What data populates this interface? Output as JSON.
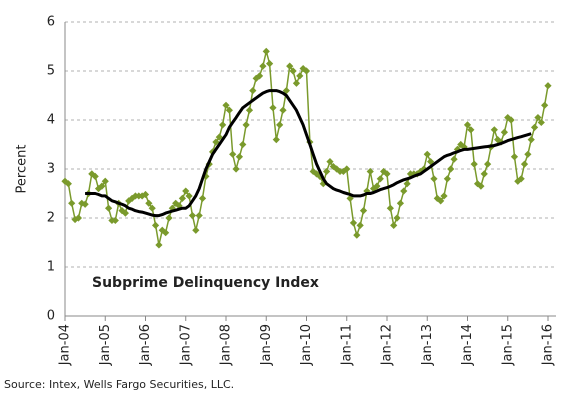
{
  "chart_data": {
    "type": "line",
    "title": "Subprime Delinquency Index",
    "y_label": "Percent",
    "source": "Source: Intex, Wells Fargo Securities, LLC.",
    "categories": [
      "Jan-04",
      null,
      null,
      null,
      null,
      null,
      null,
      null,
      null,
      null,
      null,
      null,
      "Jan-05",
      null,
      null,
      null,
      null,
      null,
      null,
      null,
      null,
      null,
      null,
      null,
      "Jan-06",
      null,
      null,
      null,
      null,
      null,
      null,
      null,
      null,
      null,
      null,
      null,
      "Jan-07",
      null,
      null,
      null,
      null,
      null,
      null,
      null,
      null,
      null,
      null,
      null,
      "Jan-08",
      null,
      null,
      null,
      null,
      null,
      null,
      null,
      null,
      null,
      null,
      null,
      "Jan-09",
      null,
      null,
      null,
      null,
      null,
      null,
      null,
      null,
      null,
      null,
      null,
      "Jan-10",
      null,
      null,
      null,
      null,
      null,
      null,
      null,
      null,
      null,
      null,
      null,
      "Jan-11",
      null,
      null,
      null,
      null,
      null,
      null,
      null,
      null,
      null,
      null,
      null,
      "Jan-12",
      null,
      null,
      null,
      null,
      null,
      null,
      null,
      null,
      null,
      null,
      null,
      "Jan-13",
      null,
      null,
      null,
      null,
      null,
      null,
      null,
      null,
      null,
      null,
      null,
      "Jan-14",
      null,
      null,
      null,
      null,
      null,
      null,
      null,
      null,
      null,
      null,
      null,
      "Jan-15",
      null,
      null,
      null,
      null,
      null,
      null,
      null,
      null,
      null,
      null,
      null,
      "Jan-16"
    ],
    "series": [
      {
        "color": "#7a9a2c",
        "marker": "diamond",
        "values": [
          2.75,
          2.7,
          2.3,
          1.97,
          2.0,
          2.3,
          2.28,
          2.5,
          2.9,
          2.85,
          2.6,
          2.65,
          2.75,
          2.2,
          1.95,
          1.95,
          2.3,
          2.15,
          2.1,
          2.35,
          2.4,
          2.45,
          2.45,
          2.45,
          2.48,
          2.3,
          2.2,
          1.85,
          1.45,
          1.75,
          1.7,
          2.0,
          2.2,
          2.3,
          2.25,
          2.4,
          2.55,
          2.45,
          2.05,
          1.75,
          2.05,
          2.4,
          2.85,
          3.1,
          3.35,
          3.55,
          3.65,
          3.9,
          4.3,
          4.2,
          3.3,
          3.0,
          3.25,
          3.5,
          3.9,
          4.2,
          4.6,
          4.85,
          4.9,
          5.1,
          5.4,
          5.15,
          4.25,
          3.6,
          3.9,
          4.2,
          4.6,
          5.1,
          5.0,
          4.75,
          4.9,
          5.05,
          5.0,
          3.55,
          2.95,
          2.9,
          2.85,
          2.7,
          2.95,
          3.15,
          3.05,
          3.0,
          2.95,
          2.95,
          3.0,
          2.4,
          1.9,
          1.65,
          1.85,
          2.15,
          2.55,
          2.95,
          2.6,
          2.65,
          2.8,
          2.95,
          2.9,
          2.2,
          1.85,
          2.0,
          2.3,
          2.55,
          2.7,
          2.9,
          2.9,
          2.9,
          2.95,
          3.0,
          3.3,
          3.15,
          2.8,
          2.4,
          2.35,
          2.45,
          2.8,
          3.0,
          3.2,
          3.4,
          3.5,
          3.45,
          3.9,
          3.8,
          3.1,
          2.7,
          2.65,
          2.9,
          3.1,
          3.45,
          3.8,
          3.6,
          3.55,
          3.75,
          4.05,
          4.0,
          3.25,
          2.75,
          2.8,
          3.1,
          3.3,
          3.6,
          3.85,
          4.05,
          3.95,
          4.3,
          4.7
        ]
      },
      {
        "color": "#000000",
        "values": [
          null,
          null,
          null,
          null,
          null,
          null,
          2.5,
          2.5,
          2.5,
          2.5,
          2.48,
          2.45,
          2.45,
          2.4,
          2.35,
          2.33,
          2.3,
          2.28,
          2.25,
          2.2,
          2.18,
          2.15,
          2.13,
          2.12,
          2.1,
          2.08,
          2.06,
          2.05,
          2.05,
          2.07,
          2.1,
          2.12,
          2.14,
          2.16,
          2.18,
          2.2,
          2.2,
          2.25,
          2.35,
          2.45,
          2.6,
          2.8,
          3.0,
          3.15,
          3.3,
          3.4,
          3.5,
          3.6,
          3.7,
          3.85,
          3.95,
          4.05,
          4.15,
          4.25,
          4.3,
          4.35,
          4.4,
          4.45,
          4.5,
          4.55,
          4.58,
          4.6,
          4.6,
          4.6,
          4.58,
          4.55,
          4.5,
          4.4,
          4.3,
          4.2,
          4.05,
          3.9,
          3.7,
          3.5,
          3.3,
          3.1,
          2.95,
          2.8,
          2.7,
          2.65,
          2.6,
          2.57,
          2.55,
          2.52,
          2.5,
          2.48,
          2.45,
          2.45,
          2.45,
          2.47,
          2.5,
          2.5,
          2.52,
          2.55,
          2.58,
          2.6,
          2.62,
          2.65,
          2.68,
          2.72,
          2.75,
          2.78,
          2.8,
          2.82,
          2.85,
          2.88,
          2.9,
          2.95,
          3.0,
          3.05,
          3.1,
          3.15,
          3.2,
          3.25,
          3.28,
          3.3,
          3.33,
          3.35,
          3.38,
          3.4,
          3.4,
          3.41,
          3.42,
          3.43,
          3.44,
          3.45,
          3.46,
          3.47,
          3.48,
          3.5,
          3.52,
          3.55,
          3.58,
          3.6,
          3.62,
          3.64,
          3.66,
          3.68,
          3.7,
          3.72,
          null,
          null,
          null,
          null,
          null
        ]
      }
    ],
    "ylim": [
      0,
      6
    ],
    "yticks": [
      0,
      1,
      2,
      3,
      4,
      5,
      6
    ],
    "grid": true
  }
}
